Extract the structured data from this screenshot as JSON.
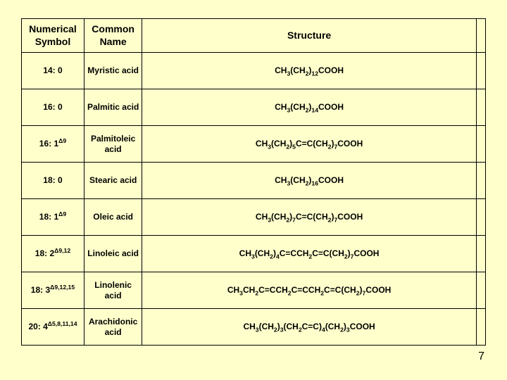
{
  "page": {
    "background_color": "#ffffcc",
    "number": "7"
  },
  "table": {
    "border_color": "#000000",
    "columns": [
      {
        "key": "symbol",
        "header": "Numerical Symbol",
        "width_pct": 13.5,
        "align": "center"
      },
      {
        "key": "name",
        "header": "Common Name",
        "width_pct": 12.5,
        "align": "center"
      },
      {
        "key": "structure",
        "header": "Structure",
        "width_pct": 72,
        "align": "center"
      },
      {
        "key": "blank",
        "header": "",
        "width_pct": 2,
        "align": "center"
      }
    ],
    "header_fontsize_pt": 14,
    "body_fontsize_pt": 12,
    "font_weight": "bold",
    "rows": [
      {
        "symbol_plain": "14: 0",
        "symbol_html": "14: 0",
        "name": "Myristic acid",
        "structure_plain": "CH3(CH2)12COOH",
        "structure_html": "CH<sub>3</sub>(CH<sub>2</sub>)<sub>12</sub>COOH"
      },
      {
        "symbol_plain": "16: 0",
        "symbol_html": "16: 0",
        "name": "Palmitic acid",
        "structure_plain": "CH3(CH2)14COOH",
        "structure_html": "CH<sub>3</sub>(CH<sub>2</sub>)<sub>14</sub>COOH"
      },
      {
        "symbol_plain": "16: 1Δ9",
        "symbol_html": "16: 1<sup>Δ9</sup>",
        "name": "Palmitoleic acid",
        "structure_plain": "CH3(CH2)5C=C(CH2)7COOH",
        "structure_html": "CH<sub>3</sub>(CH<sub>2</sub>)<sub>5</sub>C=C(CH<sub>2</sub>)<sub>7</sub>COOH"
      },
      {
        "symbol_plain": "18: 0",
        "symbol_html": "18: 0",
        "name": "Stearic acid",
        "structure_plain": "CH3(CH2)16COOH",
        "structure_html": "CH<sub>3</sub>(CH<sub>2</sub>)<sub>16</sub>COOH"
      },
      {
        "symbol_plain": "18: 1Δ9",
        "symbol_html": "18: 1<sup>Δ9</sup>",
        "name": "Oleic acid",
        "structure_plain": "CH3(CH2)7C=C(CH2)7COOH",
        "structure_html": "CH<sub>3</sub>(CH<sub>2</sub>)<sub>7</sub>C=C(CH<sub>2</sub>)<sub>7</sub>COOH"
      },
      {
        "symbol_plain": "18: 2Δ9,12",
        "symbol_html": "18: 2<sup>Δ9,12</sup>",
        "name": "Linoleic acid",
        "structure_plain": "CH3(CH2)4C=CCH2C=C(CH2)7COOH",
        "structure_html": "CH<sub>3</sub>(CH<sub>2</sub>)<sub>4</sub>C=CCH<sub>2</sub>C=C(CH<sub>2</sub>)<sub>7</sub>COOH"
      },
      {
        "symbol_plain": "18: 3Δ9,12,15",
        "symbol_html": "18: 3<sup>Δ9,12,15</sup>",
        "name": "Linolenic acid",
        "structure_plain": "CH3CH2C=CCH2C=CCH2C=C(CH2)7COOH",
        "structure_html": "CH<sub>3</sub>CH<sub>2</sub>C=CCH<sub>2</sub>C=CCH<sub>2</sub>C=C(CH<sub>2</sub>)<sub>7</sub>COOH"
      },
      {
        "symbol_plain": "20: 4Δ5,8,11,14",
        "symbol_html": "20: 4<sup>Δ5,8,11,14</sup>",
        "name": "Arachidonic acid",
        "structure_plain": "CH3(CH2)3(CH2C=C)4(CH2)3COOH",
        "structure_html": "CH<sub>3</sub>(CH<sub>2</sub>)<sub>3</sub>(CH<sub>2</sub>C=C)<sub>4</sub>(CH<sub>2</sub>)<sub>3</sub>COOH"
      }
    ]
  }
}
